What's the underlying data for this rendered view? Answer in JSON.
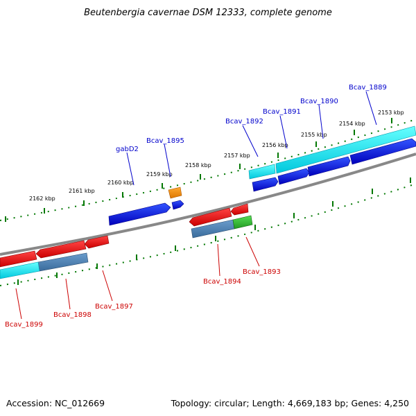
{
  "title": "Beutenbergia cavernae DSM 12333, complete genome",
  "footer": {
    "accession": "Accession: NC_012669",
    "summary": "Topology: circular; Length: 4,669,183 bp; Genes: 4,250"
  },
  "ticks": [
    {
      "label": "2153 kbp"
    },
    {
      "label": "2154 kbp"
    },
    {
      "label": "2155 kbp"
    },
    {
      "label": "2156 kbp"
    },
    {
      "label": "2157 kbp"
    },
    {
      "label": "2158 kbp"
    },
    {
      "label": "2159 kbp"
    },
    {
      "label": "2160 kbp"
    },
    {
      "label": "2161 kbp"
    },
    {
      "label": "2162 kbp"
    }
  ],
  "genes_top": [
    {
      "name": "Bcav_1889"
    },
    {
      "name": "Bcav_1890"
    },
    {
      "name": "Bcav_1891"
    },
    {
      "name": "Bcav_1892"
    },
    {
      "name": "Bcav_1895"
    },
    {
      "name": "gabD2"
    }
  ],
  "genes_bottom": [
    {
      "name": "Bcav_1893"
    },
    {
      "name": "Bcav_1894"
    },
    {
      "name": "Bcav_1897"
    },
    {
      "name": "Bcav_1898"
    },
    {
      "name": "Bcav_1899"
    }
  ],
  "colors": {
    "forward_cds": "#0000dd",
    "reverse_cds": "#ee0000",
    "cyan_feature": "#00e0ee",
    "steel_feature": "#4a7fb0",
    "green_feature": "#33bb33",
    "orange_feature": "#ee8800",
    "backbone": "#888888",
    "tick": "#007700"
  }
}
